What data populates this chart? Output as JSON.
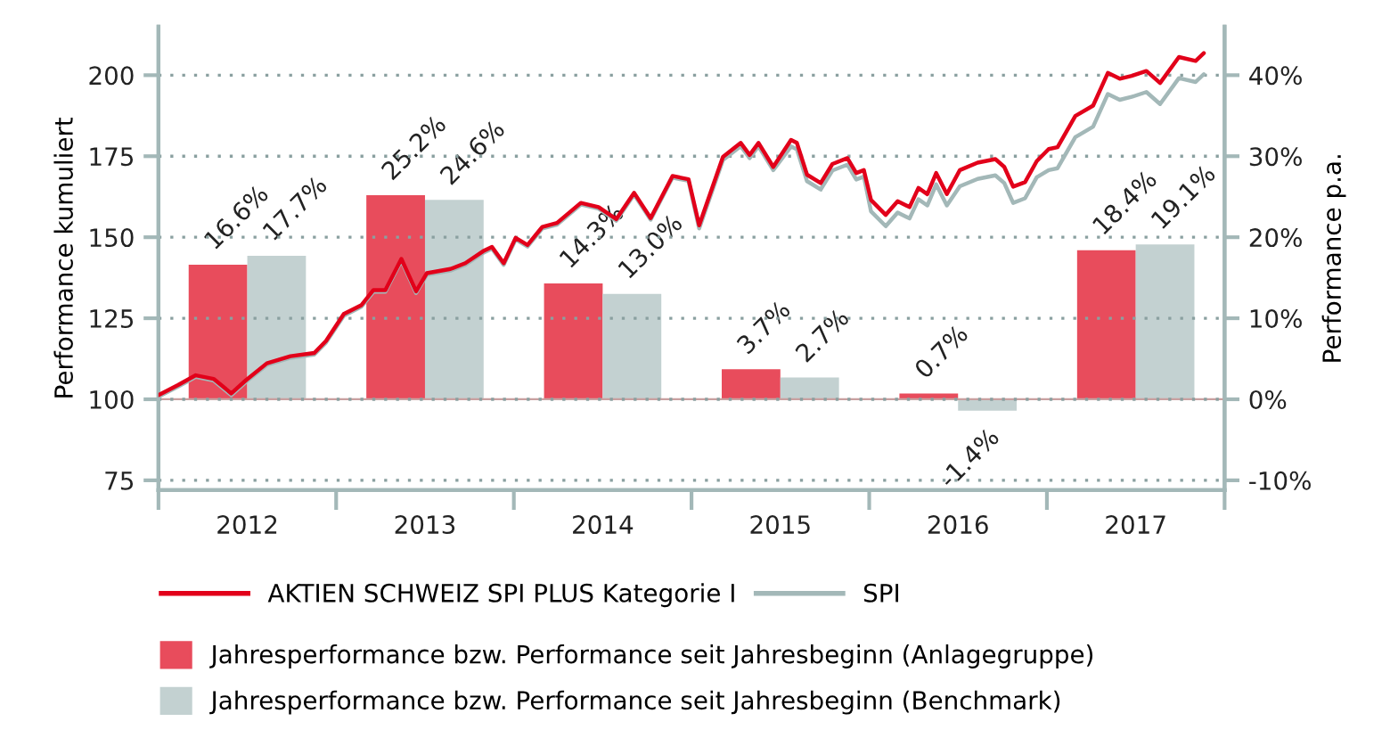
{
  "chart_data": {
    "type": "line",
    "xlim": [
      2012,
      2018
    ],
    "xticks": [
      {
        "value": 2012,
        "label": null
      },
      {
        "value": 2013,
        "label": null
      },
      {
        "value": 2014,
        "label": null
      },
      {
        "value": 2015,
        "label": null
      },
      {
        "value": 2016,
        "label": null
      },
      {
        "value": 2017,
        "label": null
      },
      {
        "value": 2018,
        "label": null
      },
      {
        "value": 2012.5,
        "label": "2012"
      },
      {
        "value": 2013.5,
        "label": "2013"
      },
      {
        "value": 2014.5,
        "label": "2014"
      },
      {
        "value": 2015.5,
        "label": "2015"
      },
      {
        "value": 2016.5,
        "label": "2016"
      },
      {
        "value": 2017.5,
        "label": "2017"
      }
    ],
    "ylabel": "Performance kumuliert",
    "y2label": "Performance p.a.",
    "ylim": [
      72,
      215
    ],
    "yticks": [
      75,
      100,
      125,
      150,
      175,
      200
    ],
    "y2lim": [
      -11.2,
      46
    ],
    "y2ticks": [
      {
        "value": -10,
        "label": "-10%"
      },
      {
        "value": 0,
        "label": "0%"
      },
      {
        "value": 10,
        "label": "10%"
      },
      {
        "value": 20,
        "label": "20%"
      },
      {
        "value": 30,
        "label": "30%"
      },
      {
        "value": 40,
        "label": "40%"
      }
    ],
    "grid": "y",
    "legend": "bottom",
    "ref_lines": [
      {
        "axis": "y",
        "value": 100,
        "color": "#c9a0a0"
      }
    ],
    "x": [
      2012.5,
      2013.5,
      2014.5,
      2015.5,
      2016.5,
      2017.5
    ],
    "series": [
      {
        "name": "Jahresperformance bzw. Performance seit Jahresbeginn (Anlagegruppe)",
        "type": "bar",
        "axis": "y2",
        "color": "#e84c5c",
        "values": [
          16.6,
          25.2,
          14.3,
          3.7,
          0.7,
          18.4
        ],
        "value_labels": [
          "16.6%",
          "25.2%",
          "14.3%",
          "3.7%",
          "0.7%",
          "18.4%"
        ]
      },
      {
        "name": "Jahresperformance bzw. Performance seit Jahresbeginn (Benchmark)",
        "type": "bar",
        "axis": "y2",
        "color": "#c3d1d1",
        "values": [
          17.7,
          24.6,
          13.0,
          2.7,
          -1.4,
          19.1
        ],
        "value_labels": [
          "17.7%",
          "24.6%",
          "13.0%",
          "2.7%",
          "-1.4%",
          "19.1%"
        ]
      },
      {
        "name": "SPI",
        "color": "#a3b8b8",
        "x": [
          2012.0,
          2012.11,
          2012.21,
          2012.31,
          2012.41,
          2012.493,
          2012.61,
          2012.743,
          2012.877,
          2012.943,
          2013.043,
          2013.143,
          2013.21,
          2013.277,
          2013.367,
          2013.45,
          2013.51,
          2013.643,
          2013.727,
          2013.827,
          2013.877,
          2013.943,
          2014.01,
          2014.077,
          2014.16,
          2014.243,
          2014.377,
          2014.477,
          2014.577,
          2014.677,
          2014.77,
          2014.893,
          2014.983,
          2015.043,
          2015.177,
          2015.277,
          2015.327,
          2015.377,
          2015.46,
          2015.56,
          2015.593,
          2015.65,
          2015.727,
          2015.793,
          2015.877,
          2015.927,
          2015.97,
          2016.01,
          2016.093,
          2016.16,
          2016.227,
          2016.277,
          2016.327,
          2016.377,
          2016.437,
          2016.51,
          2016.61,
          2016.71,
          2016.76,
          2016.81,
          2016.877,
          2016.943,
          2017.01,
          2017.06,
          2017.16,
          2017.26,
          2017.343,
          2017.41,
          2017.477,
          2017.56,
          2017.637,
          2017.743,
          2017.837,
          2017.883
        ],
        "values": [
          100.8,
          103.9,
          106.9,
          105.8,
          101.3,
          105.4,
          110.6,
          112.8,
          113.8,
          117.5,
          125.8,
          128.6,
          133.2,
          133.2,
          142.8,
          132.8,
          138.4,
          139.7,
          141.5,
          145.2,
          146.5,
          141.5,
          149.3,
          147.1,
          152.7,
          153.9,
          160.1,
          158.8,
          155.1,
          163.2,
          155.4,
          168.4,
          167.4,
          152.7,
          173.8,
          178.1,
          174.4,
          178.1,
          170.7,
          178.0,
          177.1,
          167.3,
          164.7,
          170.6,
          172.4,
          167.8,
          168.7,
          158.0,
          153.4,
          157.6,
          155.8,
          161.7,
          159.8,
          166.3,
          159.8,
          165.7,
          168.0,
          169.1,
          166.7,
          160.6,
          162.0,
          168.5,
          170.7,
          171.3,
          180.9,
          184.1,
          194.2,
          192.4,
          193.3,
          194.8,
          191.1,
          199.1,
          197.9,
          200.3
        ]
      },
      {
        "name": "AKTIEN SCHWEIZ SPI PLUS Kategorie I",
        "color": "#e2001a",
        "x": [
          2012.0,
          2012.11,
          2012.21,
          2012.31,
          2012.41,
          2012.493,
          2012.61,
          2012.743,
          2012.877,
          2012.943,
          2013.043,
          2013.143,
          2013.21,
          2013.277,
          2013.367,
          2013.45,
          2013.51,
          2013.643,
          2013.727,
          2013.827,
          2013.877,
          2013.943,
          2014.01,
          2014.077,
          2014.16,
          2014.243,
          2014.377,
          2014.477,
          2014.577,
          2014.677,
          2014.77,
          2014.893,
          2014.983,
          2015.043,
          2015.177,
          2015.277,
          2015.327,
          2015.377,
          2015.46,
          2015.56,
          2015.593,
          2015.65,
          2015.727,
          2015.793,
          2015.877,
          2015.927,
          2015.97,
          2016.01,
          2016.093,
          2016.16,
          2016.227,
          2016.277,
          2016.327,
          2016.377,
          2016.437,
          2016.51,
          2016.61,
          2016.71,
          2016.76,
          2016.81,
          2016.877,
          2016.943,
          2017.01,
          2017.06,
          2017.16,
          2017.26,
          2017.343,
          2017.41,
          2017.477,
          2017.56,
          2017.637,
          2017.743,
          2017.837,
          2017.883
        ],
        "values": [
          101.3,
          104.4,
          107.4,
          106.3,
          101.8,
          105.9,
          111.1,
          113.3,
          114.3,
          118.0,
          126.3,
          129.1,
          133.7,
          133.7,
          143.3,
          133.3,
          138.9,
          140.2,
          142.0,
          145.7,
          147.0,
          142.0,
          149.8,
          147.6,
          153.2,
          154.4,
          160.6,
          159.3,
          155.6,
          163.7,
          155.9,
          168.9,
          167.9,
          153.7,
          174.8,
          179.1,
          175.4,
          179.1,
          171.7,
          180.0,
          179.1,
          169.3,
          166.7,
          172.6,
          174.4,
          169.8,
          170.7,
          161.5,
          156.9,
          161.1,
          159.3,
          165.2,
          163.3,
          169.8,
          163.3,
          170.7,
          173.0,
          174.1,
          171.7,
          165.6,
          167.0,
          173.5,
          177.2,
          177.8,
          187.4,
          190.6,
          200.7,
          198.9,
          199.8,
          201.3,
          197.6,
          205.6,
          204.4,
          206.8
        ]
      }
    ]
  }
}
